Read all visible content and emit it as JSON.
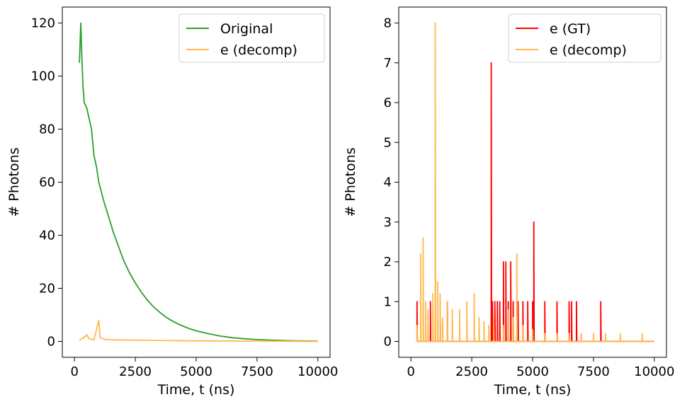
{
  "chart_data": [
    {
      "type": "line",
      "xlabel": "Time, t (ns)",
      "ylabel": "# Photons",
      "xlim": [
        -500,
        10500
      ],
      "ylim": [
        -6,
        126
      ],
      "xticks": [
        0,
        2500,
        5000,
        7500,
        10000
      ],
      "yticks": [
        0,
        20,
        40,
        60,
        80,
        100,
        120
      ],
      "legend_position": "top-right",
      "series": [
        {
          "name": "Original",
          "color": "#2ca02c",
          "x": [
            200,
            260,
            300,
            350,
            400,
            500,
            600,
            700,
            800,
            900,
            1000,
            1200,
            1400,
            1600,
            1800,
            2000,
            2250,
            2500,
            2750,
            3000,
            3250,
            3500,
            3750,
            4000,
            4250,
            4500,
            4750,
            5000,
            5500,
            6000,
            6500,
            7000,
            7500,
            8000,
            8500,
            9000,
            9500,
            10000
          ],
          "y": [
            105,
            120,
            108,
            96,
            90,
            88,
            84,
            80,
            70,
            66,
            60,
            53,
            47,
            41,
            36,
            31,
            26,
            22,
            18.5,
            15.5,
            13,
            11,
            9.2,
            7.8,
            6.6,
            5.6,
            4.7,
            4.0,
            2.9,
            2.0,
            1.4,
            1.0,
            0.7,
            0.5,
            0.35,
            0.25,
            0.15,
            0.1
          ]
        },
        {
          "name": "e (decomp)",
          "color": "#ffb84d",
          "x": [
            200,
            400,
            500,
            600,
            800,
            1000,
            1050,
            1200,
            1500,
            2000,
            3000,
            4000,
            5000,
            6000,
            7000,
            8000,
            9000,
            10000
          ],
          "y": [
            0.5,
            1.5,
            2.5,
            1.0,
            0.6,
            8.0,
            1.5,
            0.8,
            0.6,
            0.5,
            0.4,
            0.3,
            0.2,
            0.15,
            0.1,
            0.1,
            0.05,
            0.0
          ]
        }
      ]
    },
    {
      "type": "line",
      "xlabel": "Time, t (ns)",
      "ylabel": "# Photons",
      "xlim": [
        -500,
        10500
      ],
      "ylim": [
        -0.4,
        8.4
      ],
      "xticks": [
        0,
        2500,
        5000,
        7500,
        10000
      ],
      "yticks": [
        0,
        1,
        2,
        3,
        4,
        5,
        6,
        7,
        8
      ],
      "legend_position": "top-right",
      "series": [
        {
          "name": "e (GT)",
          "color": "#ff0000",
          "spikes": [
            [
              250,
              1
            ],
            [
              800,
              1
            ],
            [
              1200,
              1
            ],
            [
              1500,
              1
            ],
            [
              3300,
              7
            ],
            [
              3350,
              1
            ],
            [
              3450,
              1
            ],
            [
              3550,
              1
            ],
            [
              3650,
              1
            ],
            [
              3800,
              2
            ],
            [
              3900,
              2
            ],
            [
              4000,
              1
            ],
            [
              4100,
              2
            ],
            [
              4200,
              1
            ],
            [
              4400,
              1
            ],
            [
              4600,
              1
            ],
            [
              4800,
              1
            ],
            [
              5000,
              1
            ],
            [
              5050,
              3
            ],
            [
              5500,
              1
            ],
            [
              6000,
              1
            ],
            [
              6500,
              1
            ],
            [
              6600,
              1
            ],
            [
              6800,
              1
            ],
            [
              7800,
              1
            ]
          ],
          "x_end": 10000
        },
        {
          "name": "e (decomp)",
          "color": "#ffb84d",
          "spikes": [
            [
              250,
              0.4
            ],
            [
              400,
              2.2
            ],
            [
              500,
              2.6
            ],
            [
              600,
              1.0
            ],
            [
              700,
              0.8
            ],
            [
              900,
              1.2
            ],
            [
              1000,
              8.0
            ],
            [
              1100,
              1.5
            ],
            [
              1200,
              1.2
            ],
            [
              1300,
              0.6
            ],
            [
              1500,
              1.0
            ],
            [
              1700,
              0.8
            ],
            [
              2000,
              0.8
            ],
            [
              2300,
              1.0
            ],
            [
              2600,
              1.2
            ],
            [
              2800,
              0.6
            ],
            [
              3000,
              0.5
            ],
            [
              3200,
              0.4
            ],
            [
              3400,
              0.6
            ],
            [
              3800,
              0.4
            ],
            [
              4000,
              0.8
            ],
            [
              4200,
              0.6
            ],
            [
              4350,
              2.2
            ],
            [
              4600,
              0.4
            ],
            [
              5000,
              0.3
            ],
            [
              5500,
              0.2
            ],
            [
              6000,
              0.2
            ],
            [
              6500,
              0.2
            ],
            [
              7000,
              0.2
            ],
            [
              7500,
              0.2
            ],
            [
              8000,
              0.2
            ],
            [
              8600,
              0.2
            ],
            [
              9500,
              0.2
            ]
          ],
          "x_end": 10000
        }
      ]
    }
  ]
}
